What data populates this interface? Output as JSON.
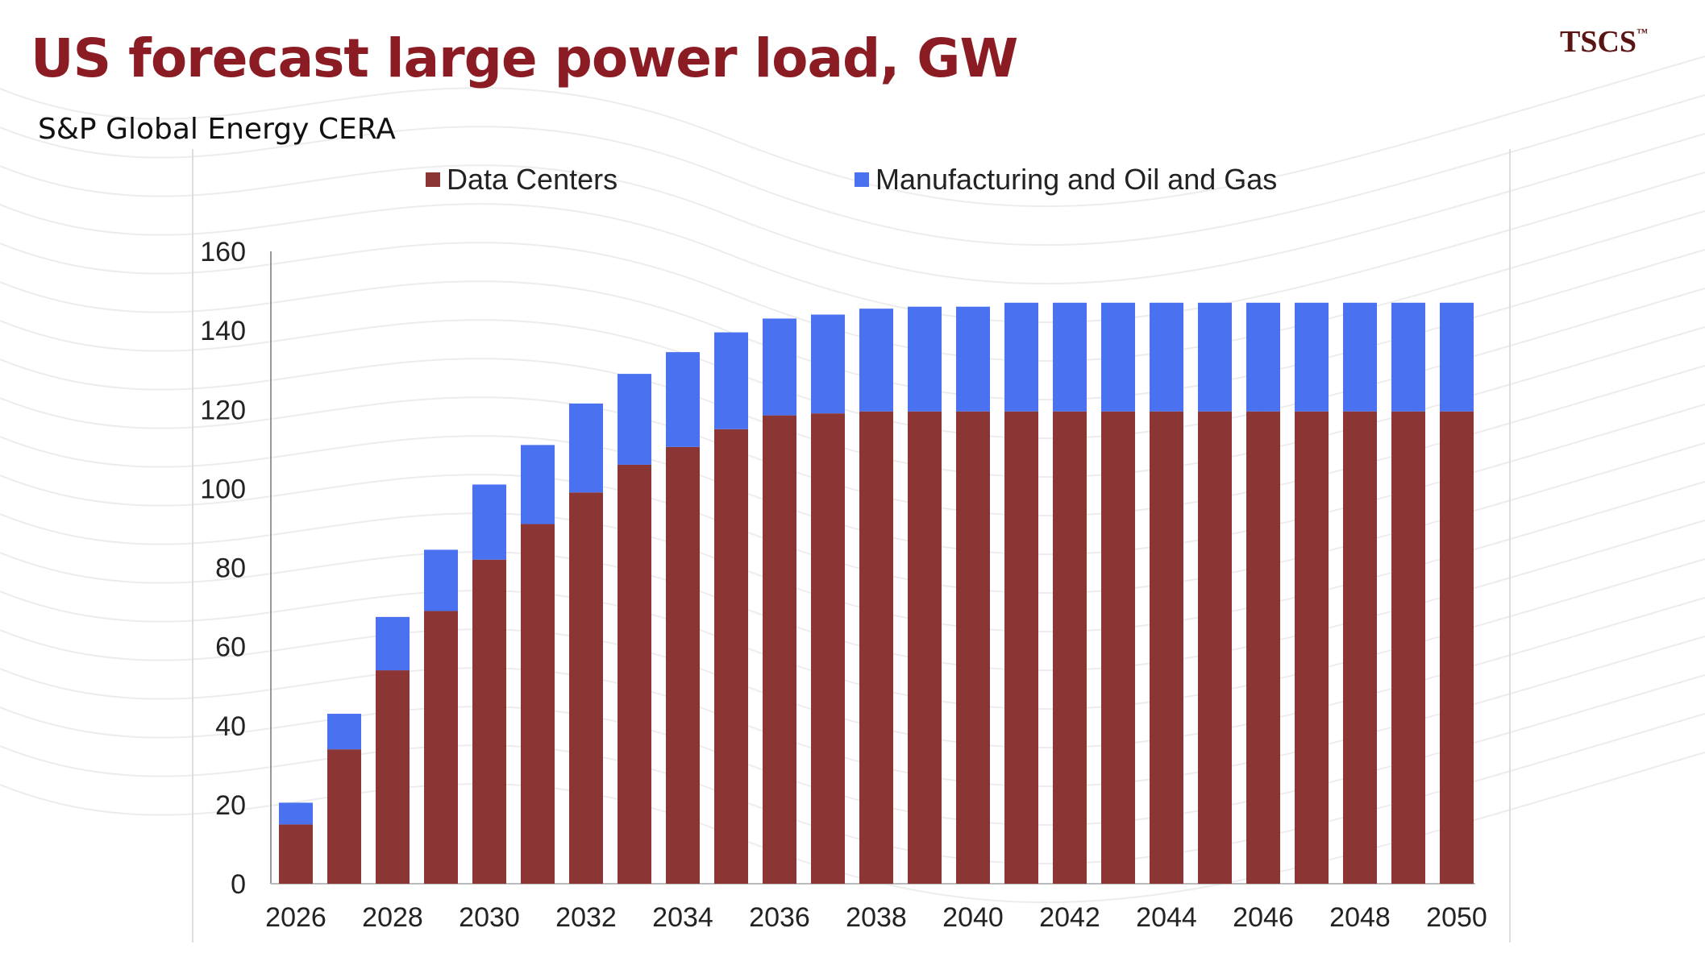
{
  "header": {
    "title": "US forecast large power load, GW",
    "subtitle": "S&P Global Energy CERA",
    "logo": "TSCS",
    "logo_mark": "™"
  },
  "colors": {
    "data_centers": "#8b3535",
    "manufacturing": "#4a72f0",
    "title": "#8b1c24"
  },
  "chart_data": {
    "type": "bar",
    "stacked": true,
    "title": "US forecast large power load, GW",
    "xlabel": "",
    "ylabel": "GW",
    "ylim": [
      0,
      160
    ],
    "yticks": [
      0,
      20,
      40,
      60,
      80,
      100,
      120,
      140,
      160
    ],
    "legend_position": "top",
    "categories": [
      "2026",
      "2027",
      "2028",
      "2029",
      "2030",
      "2031",
      "2032",
      "2033",
      "2034",
      "2035",
      "2036",
      "2037",
      "2038",
      "2039",
      "2040",
      "2041",
      "2042",
      "2043",
      "2044",
      "2045",
      "2046",
      "2047",
      "2048",
      "2049",
      "2050"
    ],
    "xtick_labels": [
      "2026",
      "2028",
      "2030",
      "2032",
      "2034",
      "2036",
      "2038",
      "2040",
      "2042",
      "2044",
      "2046",
      "2048",
      "2050"
    ],
    "series": [
      {
        "name": "Data Centers",
        "values": [
          15,
          34,
          54,
          69,
          82,
          91,
          99,
          106,
          110.5,
          115,
          118.5,
          119,
          119.5,
          119.5,
          119.5,
          119.5,
          119.5,
          119.5,
          119.5,
          119.5,
          119.5,
          119.5,
          119.5,
          119.5,
          119.5
        ]
      },
      {
        "name": "Manufacturing and Oil and Gas",
        "values": [
          5.5,
          9,
          13.5,
          15.5,
          19,
          20,
          22.5,
          23,
          24,
          24.5,
          24.5,
          25,
          26,
          26.5,
          26.5,
          27.5,
          27.5,
          27.5,
          27.5,
          27.5,
          27.5,
          27.5,
          27.5,
          27.5,
          27.5
        ]
      }
    ]
  }
}
